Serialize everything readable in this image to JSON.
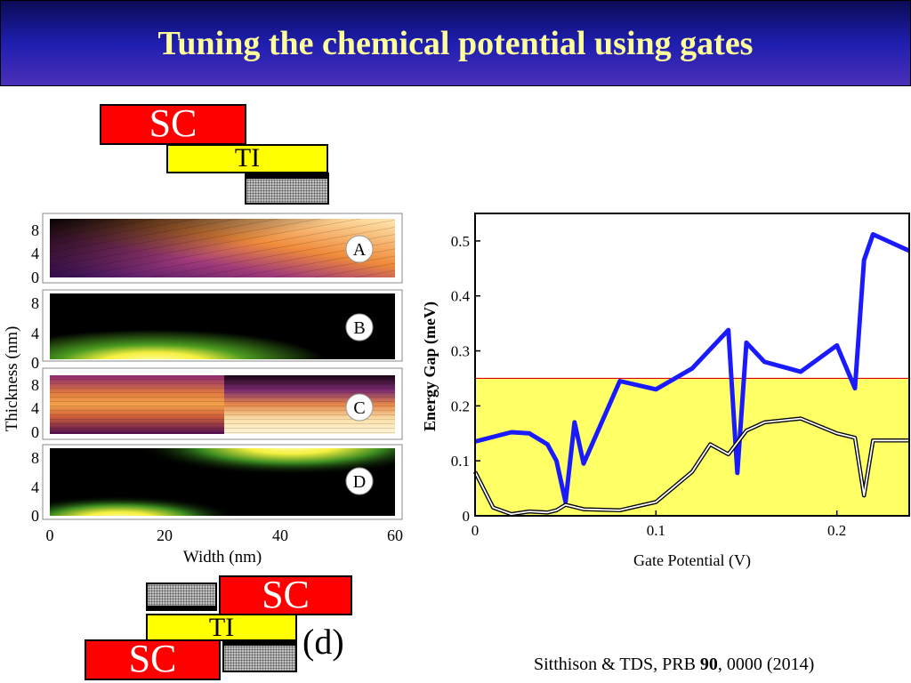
{
  "title": "Tuning the chemical potential using gates",
  "top_stack": {
    "sc_label": "SC",
    "ti_label": "TI"
  },
  "bottom_stack": {
    "sc_top_label": "SC",
    "ti_label": "TI",
    "sc_bottom_label": "SC",
    "panel_label": "(d)"
  },
  "citation": {
    "authors": "Sitthison & TDS, PRB ",
    "volume": "90",
    "rest": ", 0000 (2014)"
  },
  "colors": {
    "sc": "#ff0000",
    "ti": "#ffff00",
    "title_text": "#ffff99",
    "gap_line": "#1a1aff",
    "region": "#ffff66",
    "threshold": "#dd0000"
  },
  "maps": {
    "ylabel": "Thickness (nm)",
    "xlabel": "Width (nm)",
    "x_ticks": [
      "0",
      "20",
      "40",
      "60"
    ],
    "y_ticks": [
      "0",
      "4",
      "8"
    ],
    "panels": [
      {
        "label": "A",
        "kind": "potential"
      },
      {
        "label": "B",
        "kind": "density"
      },
      {
        "label": "C",
        "kind": "potential"
      },
      {
        "label": "D",
        "kind": "density"
      }
    ]
  },
  "chart_data": {
    "type": "line",
    "xlabel": "Gate Potential (V)",
    "ylabel": "Energy Gap (meV)",
    "xlim": [
      0,
      0.24
    ],
    "ylim": [
      0,
      0.55
    ],
    "x_ticks": [
      "0",
      "0.1",
      "0.2"
    ],
    "y_ticks": [
      "0",
      "0.1",
      "0.2",
      "0.3",
      "0.4",
      "0.5"
    ],
    "x_tick_values": [
      0,
      0.1,
      0.2
    ],
    "y_tick_values": [
      0,
      0.1,
      0.2,
      0.3,
      0.4,
      0.5
    ],
    "threshold": 0.25,
    "series": [
      {
        "style": "thick-blue",
        "x": [
          0,
          0.02,
          0.03,
          0.04,
          0.045,
          0.05,
          0.055,
          0.06,
          0.08,
          0.1,
          0.12,
          0.14,
          0.145,
          0.15,
          0.16,
          0.18,
          0.2,
          0.21,
          0.215,
          0.22,
          0.24
        ],
        "y": [
          0.135,
          0.152,
          0.15,
          0.13,
          0.1,
          0.025,
          0.17,
          0.095,
          0.245,
          0.23,
          0.268,
          0.338,
          0.078,
          0.315,
          0.28,
          0.262,
          0.31,
          0.232,
          0.465,
          0.512,
          0.482
        ]
      },
      {
        "style": "outlined-white",
        "x": [
          0,
          0.01,
          0.02,
          0.03,
          0.04,
          0.045,
          0.05,
          0.06,
          0.08,
          0.1,
          0.12,
          0.13,
          0.14,
          0.15,
          0.16,
          0.18,
          0.2,
          0.21,
          0.215,
          0.22,
          0.24
        ],
        "y": [
          0.08,
          0.015,
          0.003,
          0.008,
          0.006,
          0.01,
          0.02,
          0.012,
          0.01,
          0.025,
          0.08,
          0.13,
          0.112,
          0.155,
          0.17,
          0.177,
          0.15,
          0.142,
          0.037,
          0.137,
          0.137
        ]
      }
    ]
  }
}
